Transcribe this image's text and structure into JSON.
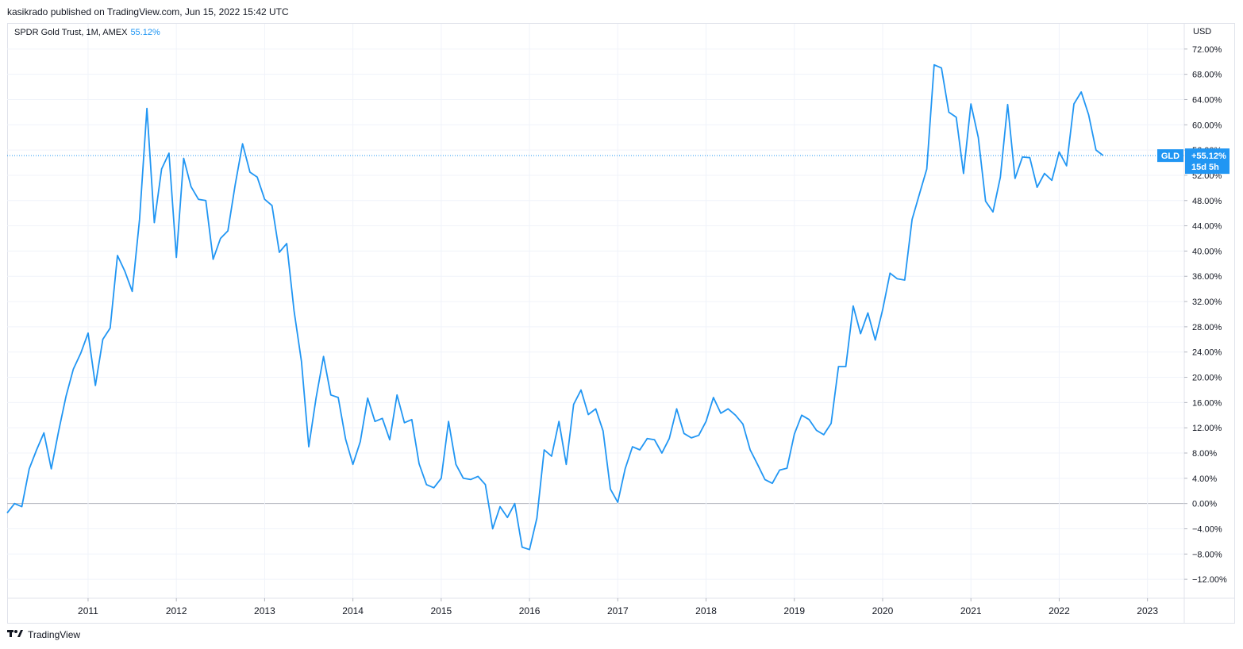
{
  "publisher": "kasikrado published on TradingView.com, Jun 15, 2022 15:42 UTC",
  "legend": {
    "label": "SPDR Gold Trust, 1M, AMEX",
    "value": "55.12%"
  },
  "currency": "USD",
  "footer": {
    "logo_icon": "tradingview-logo-icon",
    "brand": "TradingView"
  },
  "colors": {
    "line": "#2196f3",
    "grid": "#f0f3fa",
    "zero_line": "#b2b5be",
    "tag": "#2196f3",
    "axis_text": "#131722"
  },
  "price_tag": {
    "symbol": "GLD",
    "value": "+55.12%",
    "countdown": "15d 5h"
  },
  "chart_data": {
    "type": "line",
    "title": "SPDR Gold Trust, 1M, AMEX",
    "xlabel": "",
    "ylabel": "",
    "y_unit": "%",
    "ylim": [
      -15,
      76
    ],
    "xlim": [
      "2010-02",
      "2023-06"
    ],
    "grid": true,
    "legend_placement": "top-left",
    "x_ticks": [
      "2011",
      "2012",
      "2013",
      "2014",
      "2015",
      "2016",
      "2017",
      "2018",
      "2019",
      "2020",
      "2021",
      "2022",
      "2023"
    ],
    "y_ticks": [
      72,
      68,
      64,
      60,
      56,
      52,
      48,
      44,
      40,
      36,
      32,
      28,
      24,
      20,
      16,
      12,
      8,
      4,
      0,
      -4,
      -8,
      -12
    ],
    "y_tick_labels": [
      "72.00%",
      "68.00%",
      "64.00%",
      "60.00%",
      "56.00%",
      "52.00%",
      "48.00%",
      "44.00%",
      "40.00%",
      "36.00%",
      "32.00%",
      "28.00%",
      "24.00%",
      "20.00%",
      "16.00%",
      "12.00%",
      "8.00%",
      "4.00%",
      "0.00%",
      "−4.00%",
      "−8.00%",
      "−12.00%"
    ],
    "last_value": 55.12,
    "series": [
      {
        "start": "2010-02",
        "values": [
          -1.5,
          0,
          -0.5,
          5.5,
          8.5,
          11.2,
          5.5,
          11.5,
          17,
          21.3,
          23.8,
          27,
          18.7,
          26,
          27.8,
          39.3,
          36.8,
          33.6,
          45,
          62.6,
          44.5,
          53,
          55.5,
          39,
          54.7,
          50.2,
          48.2,
          48,
          38.7,
          42,
          43.2,
          50.5,
          57,
          52.5,
          51.7,
          48.2,
          47.2,
          39.8,
          41.2,
          30.5,
          22.5,
          9,
          16.8,
          23.3,
          17.2,
          16.8,
          10.2,
          6.2,
          9.8,
          16.7,
          13,
          13.5,
          10.1,
          17.2,
          12.8,
          13.3,
          6.3,
          3,
          2.5,
          4,
          13,
          6.2,
          4,
          3.8,
          4.3,
          3,
          -4,
          -0.5,
          -2.2,
          0,
          -6.9,
          -7.3,
          -2.3,
          8.5,
          7.5,
          13,
          6.2,
          15.7,
          18,
          14.1,
          15,
          11.5,
          2.3,
          0.2,
          5.5,
          9,
          8.5,
          10.3,
          10.1,
          8,
          10.3,
          15,
          11.1,
          10.4,
          10.8,
          13,
          16.8,
          14.3,
          15,
          14,
          12.6,
          8.5,
          6.2,
          3.8,
          3.2,
          5.3,
          5.6,
          11,
          14,
          13.3,
          11.6,
          10.9,
          12.7,
          21.7,
          21.7,
          31.3,
          26.9,
          30.2,
          25.9,
          30.7,
          36.5,
          35.6,
          35.4,
          45,
          49,
          53,
          69.5,
          69,
          62,
          61.2,
          52.3,
          63.3,
          58,
          47.9,
          46.2,
          51.7,
          63.2,
          51.5,
          54.9,
          54.8,
          50.1,
          52.3,
          51.2,
          55.7,
          53.5,
          63.3,
          65.2,
          61.6,
          56,
          55.12
        ]
      }
    ]
  }
}
